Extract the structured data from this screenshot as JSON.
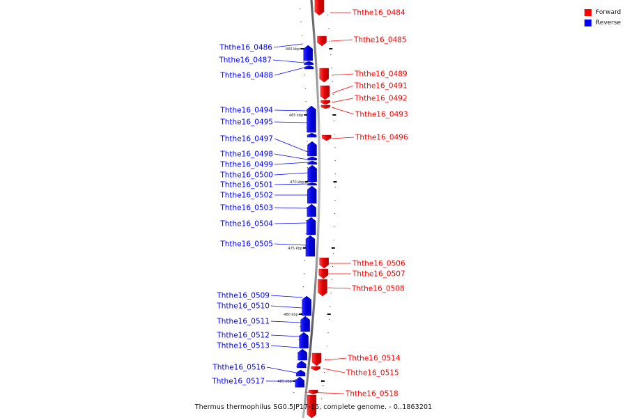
{
  "legend": {
    "forward_label": "Forward",
    "reverse_label": "Reverse",
    "forward_color": "#ff0000",
    "reverse_color": "#0000ff"
  },
  "caption": "Thermus thermophilus SG0.5JP17-16, complete genome. - 0..1863201",
  "ticks": [
    "460 kbp",
    "465 kbp",
    "470 kbp",
    "475 kbp",
    "480 kbp",
    "485 kbp"
  ],
  "forward_genes": [
    "Ththe16_0484",
    "Ththe16_0485",
    "Ththe16_0489",
    "Ththe16_0491",
    "Ththe16_0492",
    "Ththe16_0493",
    "Ththe16_0496",
    "Ththe16_0506",
    "Ththe16_0507",
    "Ththe16_0508",
    "Ththe16_0514",
    "Ththe16_0515",
    "Ththe16_0518"
  ],
  "reverse_genes": [
    "Ththe16_0486",
    "Ththe16_0487",
    "Ththe16_0488",
    "Ththe16_0494",
    "Ththe16_0495",
    "Ththe16_0497",
    "Ththe16_0498",
    "Ththe16_0499",
    "Ththe16_0500",
    "Ththe16_0501",
    "Ththe16_0502",
    "Ththe16_0503",
    "Ththe16_0504",
    "Ththe16_0505",
    "Ththe16_0509",
    "Ththe16_0510",
    "Ththe16_0511",
    "Ththe16_0512",
    "Ththe16_0513",
    "Ththe16_0516",
    "Ththe16_0517"
  ]
}
